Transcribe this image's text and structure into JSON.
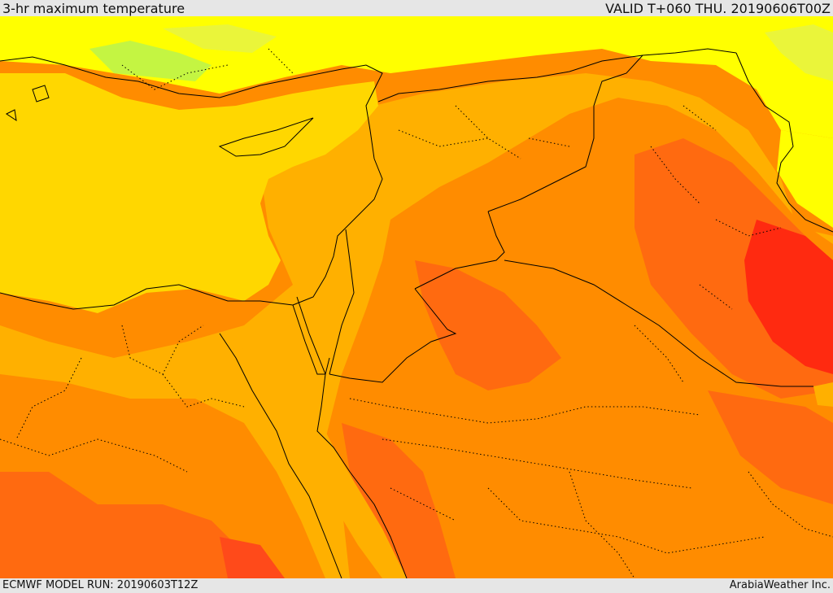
{
  "header": {
    "title": "3-hr maximum temperature",
    "valid_time": "VALID T+060 THU. 20190606T00Z"
  },
  "footer": {
    "model_run": "ECMWF MODEL RUN: 20190603T12Z",
    "credit": "ArabiaWeather Inc."
  },
  "map": {
    "palette": {
      "green": "#c4f542",
      "yellow_green": "#eaf53a",
      "yellow": "#ffff00",
      "gold": "#ffd700",
      "amber": "#ffb000",
      "orange": "#ff8c00",
      "dark_orange": "#ff6a10",
      "red_orange": "#ff4a1a",
      "red": "#ff2a10"
    },
    "boundary_color": "#000000"
  }
}
